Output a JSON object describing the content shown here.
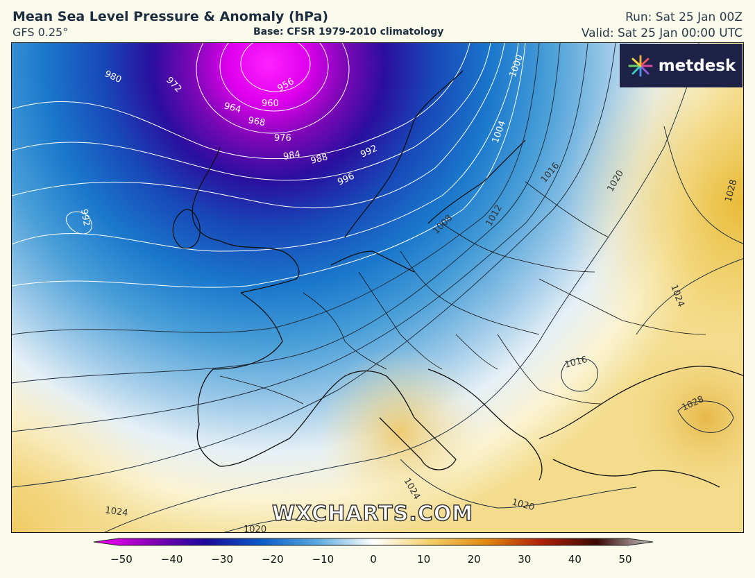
{
  "header": {
    "title": "Mean Sea Level Pressure & Anomaly (hPa)",
    "model": "GFS 0.25°",
    "base": "Base: CFSR 1979-2010 climatology",
    "run": "Run: Sat 25 Jan 00Z",
    "valid": "Valid: Sat 25 Jan 00:00 UTC"
  },
  "logo": {
    "text": "metdesk",
    "icon": "metdesk-sunburst-icon"
  },
  "watermark": "WXCHARTS.COM",
  "colorbar": {
    "ticks": [
      "−50",
      "−40",
      "−30",
      "−20",
      "−10",
      "0",
      "10",
      "20",
      "30",
      "40",
      "50"
    ],
    "stops": [
      "#ff00ff",
      "#8a00b8",
      "#1a0a9a",
      "#0a5cc8",
      "#5aa9de",
      "#ffffff",
      "#f4d06a",
      "#e08a10",
      "#b02008",
      "#3a0a04",
      "#c8c8c8"
    ]
  },
  "isobar_labels": {
    "l980": "980",
    "l972": "972",
    "l964": "964",
    "l956": "956",
    "l960": "960",
    "l968": "968",
    "l976": "976",
    "l984": "984",
    "l988": "988",
    "l992a": "992",
    "l996": "996",
    "l992b": "992",
    "l1000": "1000",
    "l1004": "1004",
    "l1008": "1008",
    "l1012": "1012",
    "l1016a": "1016",
    "l1020a": "1020",
    "l1028a": "1028",
    "l1024a": "1024",
    "l1016b": "1016",
    "l1028b": "1028",
    "l1024b": "1024",
    "l1020b": "1020",
    "l1020c": "1020",
    "l1024c": "1024"
  },
  "colors": {
    "low_center": "#ff00ff",
    "deep_blue": "#1b2fa8",
    "anomaly_positive": "#f1d27a"
  }
}
